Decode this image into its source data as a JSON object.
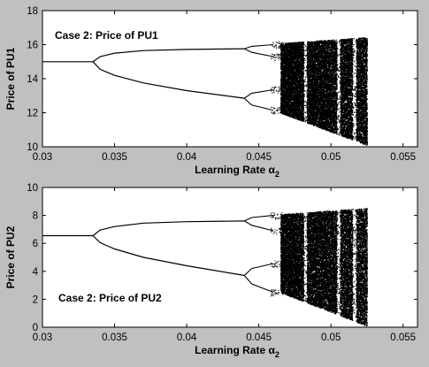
{
  "chart_data": [
    {
      "type": "scatter",
      "subtype": "bifurcation-diagram",
      "annotation": "Case 2: Price of PU1",
      "xlabel": "Learning Rate α",
      "xlabel_subscript": "2",
      "ylabel": "Price of PU1",
      "xlim": [
        0.03,
        0.056
      ],
      "ylim": [
        10,
        18
      ],
      "xticks": [
        "0.03",
        "0.035",
        "0.04",
        "0.045",
        "0.05",
        "0.055"
      ],
      "yticks": [
        "10",
        "12",
        "14",
        "16",
        "18"
      ],
      "grid": false,
      "fixed_point": {
        "x_end": 0.0335,
        "y": 15.0
      },
      "period2_upper": [
        [
          0.0335,
          15.0
        ],
        [
          0.034,
          15.3
        ],
        [
          0.035,
          15.5
        ],
        [
          0.037,
          15.65
        ],
        [
          0.04,
          15.72
        ],
        [
          0.044,
          15.76
        ]
      ],
      "period2_lower": [
        [
          0.0335,
          15.0
        ],
        [
          0.034,
          14.55
        ],
        [
          0.035,
          14.2
        ],
        [
          0.037,
          13.75
        ],
        [
          0.04,
          13.3
        ],
        [
          0.044,
          12.85
        ]
      ],
      "period4_branches": [
        [
          [
            0.044,
            15.76
          ],
          [
            0.0445,
            15.9
          ],
          [
            0.046,
            16.0
          ]
        ],
        [
          [
            0.044,
            15.76
          ],
          [
            0.0445,
            15.55
          ],
          [
            0.046,
            15.3
          ]
        ],
        [
          [
            0.044,
            12.85
          ],
          [
            0.0445,
            13.15
          ],
          [
            0.046,
            13.35
          ]
        ],
        [
          [
            0.044,
            12.85
          ],
          [
            0.0445,
            12.45
          ],
          [
            0.046,
            12.15
          ]
        ]
      ],
      "chaos": {
        "x_start": 0.0465,
        "x_end": 0.0525,
        "upper": [
          [
            0.0465,
            16.1
          ],
          [
            0.0525,
            16.45
          ]
        ],
        "lower": [
          [
            0.0465,
            12.0
          ],
          [
            0.0525,
            10.1
          ]
        ]
      },
      "windows": [
        0.0482,
        0.0505,
        0.0516
      ]
    },
    {
      "type": "scatter",
      "subtype": "bifurcation-diagram",
      "annotation": "Case 2: Price of PU2",
      "xlabel": "Learning Rate α",
      "xlabel_subscript": "2",
      "ylabel": "Price of PU2",
      "xlim": [
        0.03,
        0.056
      ],
      "ylim": [
        0,
        10
      ],
      "xticks": [
        "0.03",
        "0.035",
        "0.04",
        "0.045",
        "0.05",
        "0.055"
      ],
      "yticks": [
        "0",
        "2",
        "4",
        "6",
        "8",
        "10"
      ],
      "grid": false,
      "fixed_point": {
        "x_end": 0.0335,
        "y": 6.55
      },
      "period2_upper": [
        [
          0.0335,
          6.55
        ],
        [
          0.034,
          6.95
        ],
        [
          0.035,
          7.2
        ],
        [
          0.037,
          7.45
        ],
        [
          0.04,
          7.55
        ],
        [
          0.044,
          7.6
        ]
      ],
      "period2_lower": [
        [
          0.0335,
          6.55
        ],
        [
          0.034,
          6.05
        ],
        [
          0.035,
          5.6
        ],
        [
          0.037,
          5.0
        ],
        [
          0.04,
          4.4
        ],
        [
          0.044,
          3.7
        ]
      ],
      "period4_branches": [
        [
          [
            0.044,
            7.6
          ],
          [
            0.0445,
            7.85
          ],
          [
            0.046,
            8.0
          ]
        ],
        [
          [
            0.044,
            7.6
          ],
          [
            0.0445,
            7.3
          ],
          [
            0.046,
            6.9
          ]
        ],
        [
          [
            0.044,
            3.7
          ],
          [
            0.0445,
            4.2
          ],
          [
            0.046,
            4.55
          ]
        ],
        [
          [
            0.044,
            3.7
          ],
          [
            0.0445,
            3.1
          ],
          [
            0.046,
            2.5
          ]
        ]
      ],
      "chaos": {
        "x_start": 0.0465,
        "x_end": 0.0525,
        "upper": [
          [
            0.0465,
            8.1
          ],
          [
            0.0525,
            8.55
          ]
        ],
        "lower": [
          [
            0.0465,
            2.5
          ],
          [
            0.0525,
            0.1
          ]
        ]
      },
      "windows": [
        0.0482,
        0.0505,
        0.0516
      ]
    }
  ]
}
